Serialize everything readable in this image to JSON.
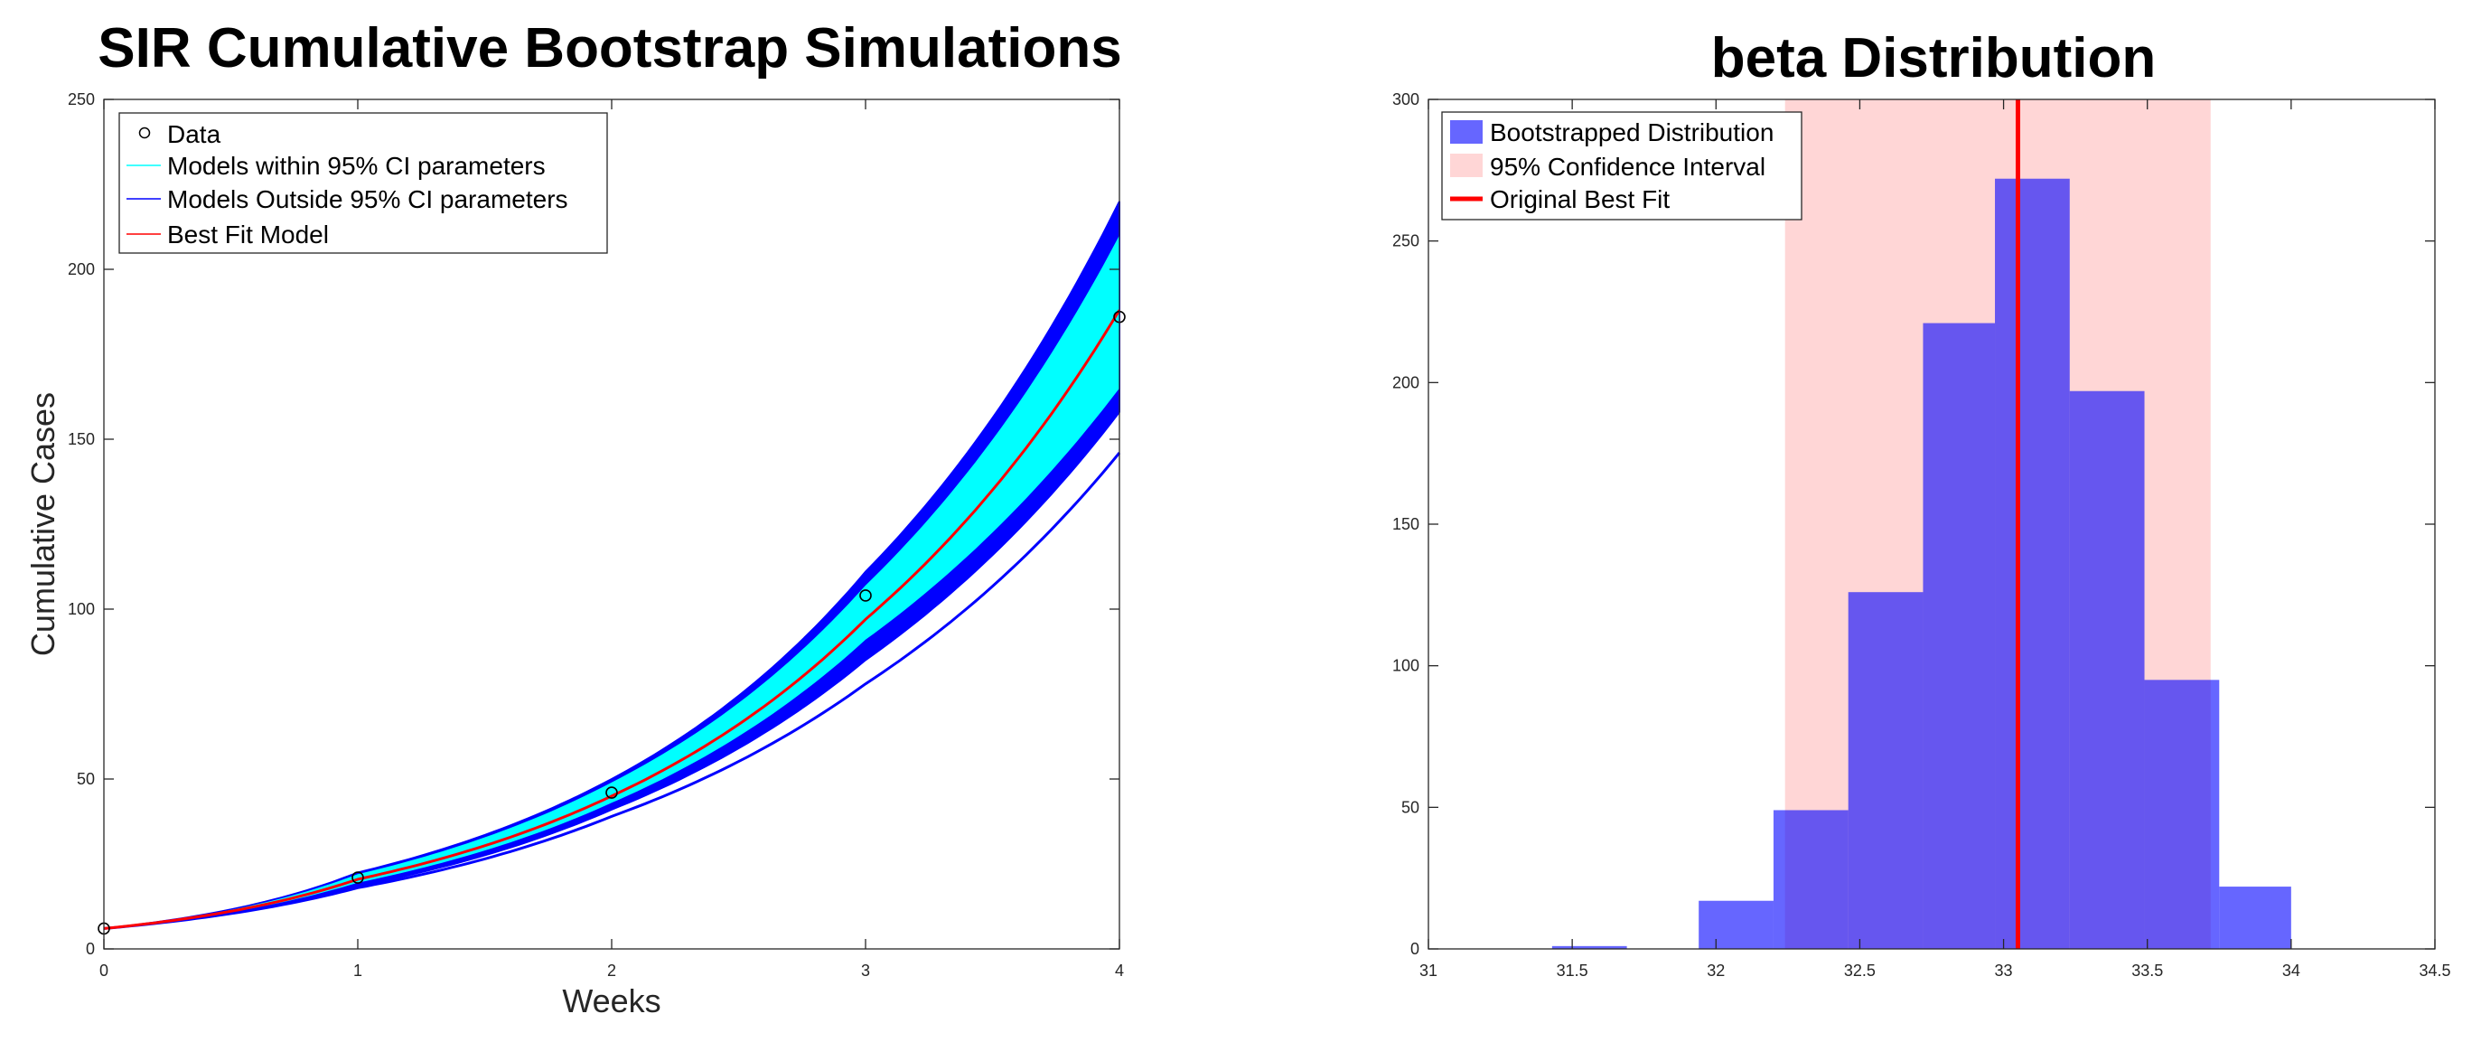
{
  "chart_data": [
    {
      "type": "line",
      "title": "SIR Cumulative Bootstrap Simulations",
      "xlabel": "Weeks",
      "ylabel": "Cumulative Cases",
      "xlim": [
        0,
        4
      ],
      "ylim": [
        0,
        250
      ],
      "xticks": [
        0,
        1,
        2,
        3,
        4
      ],
      "yticks": [
        0,
        50,
        100,
        150,
        200,
        250
      ],
      "grid": false,
      "legend_position": "top-left",
      "legend": [
        "Data",
        "Models within 95% CI parameters",
        "Models Outside 95% CI parameters",
        "Best Fit Model"
      ],
      "data": {
        "name": "Data",
        "x": [
          0,
          1,
          2,
          3,
          4
        ],
        "y": [
          6,
          21,
          46,
          104,
          186
        ]
      },
      "ci_band": {
        "name": "Models within 95% CI parameters",
        "x": [
          0,
          1,
          2,
          3,
          4
        ],
        "lower": [
          6,
          19.5,
          43,
          91,
          165
        ],
        "upper": [
          6,
          22,
          49,
          107,
          210
        ]
      },
      "outside_band": {
        "name": "Models Outside 95% CI parameters",
        "x": [
          0,
          1,
          2,
          3,
          4
        ],
        "lower": [
          6,
          18.5,
          41,
          85,
          158
        ],
        "upper": [
          6,
          22.5,
          50,
          111,
          220
        ]
      },
      "outlier_curve": {
        "x": [
          0,
          1,
          2,
          3,
          4
        ],
        "y": [
          6,
          18,
          39,
          78,
          146
        ]
      },
      "best_fit": {
        "name": "Best Fit Model",
        "x": [
          0,
          1,
          2,
          3,
          4
        ],
        "y": [
          6,
          20.5,
          45,
          97,
          188
        ]
      },
      "colors": {
        "data": "#000000",
        "ci": "#00ffff",
        "outside": "#0000ff",
        "best": "#ff0000"
      }
    },
    {
      "type": "bar",
      "title": "beta Distribution",
      "xlim": [
        31,
        34.5
      ],
      "ylim": [
        0,
        300
      ],
      "xticks": [
        31,
        31.5,
        32,
        32.5,
        33,
        33.5,
        34,
        34.5
      ],
      "yticks": [
        0,
        50,
        100,
        150,
        200,
        250,
        300
      ],
      "grid": false,
      "legend_position": "top-left",
      "legend": [
        "Bootstrapped Distribution",
        "95% Confidence Interval",
        "Original Best Fit"
      ],
      "histogram": {
        "name": "Bootstrapped Distribution",
        "bin_edges": [
          31.43,
          31.69,
          31.94,
          32.2,
          32.46,
          32.72,
          32.97,
          33.23,
          33.49,
          33.75,
          34.0
        ],
        "counts": [
          1,
          0,
          17,
          49,
          126,
          221,
          272,
          197,
          95,
          22
        ]
      },
      "confidence_interval": {
        "name": "95% Confidence Interval",
        "lower": 32.24,
        "upper": 33.72
      },
      "best_fit": {
        "name": "Original Best Fit",
        "x": 33.05
      },
      "colors": {
        "hist": "#0000ff",
        "ci": "#ffcccc",
        "best": "#ff0000"
      }
    }
  ]
}
